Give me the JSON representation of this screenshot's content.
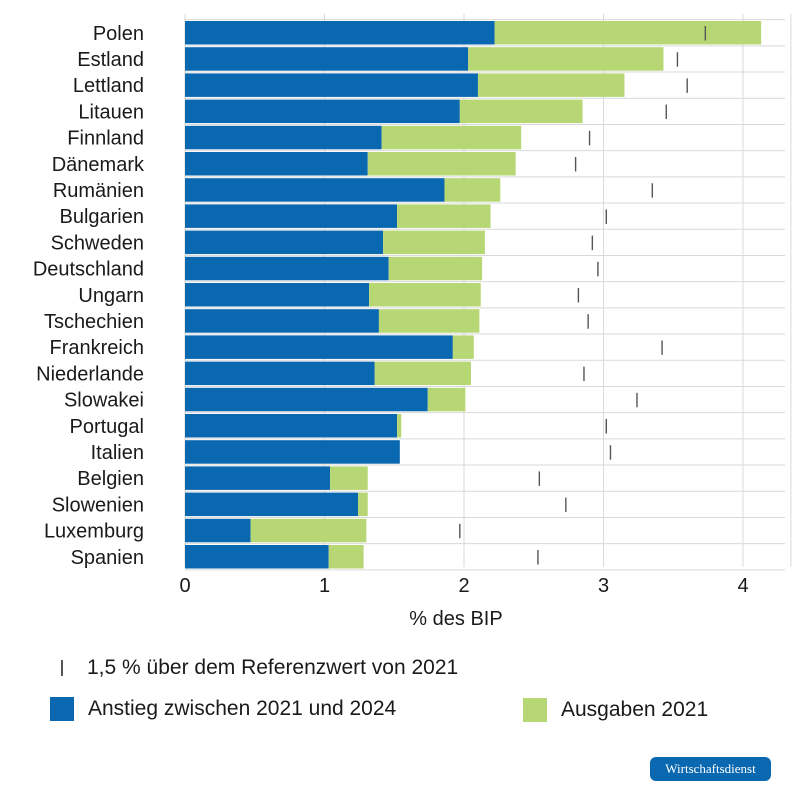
{
  "chart_data": {
    "type": "bar",
    "orientation": "horizontal",
    "stacked": true,
    "xlabel": "% des BIP",
    "xlim": [
      0,
      4.2
    ],
    "xticks": [
      0,
      1,
      2,
      3,
      4
    ],
    "grid": true,
    "categories": [
      "Polen",
      "Estland",
      "Lettland",
      "Litauen",
      "Finnland",
      "Dänemark",
      "Rumänien",
      "Bulgarien",
      "Schweden",
      "Deutschland",
      "Ungarn",
      "Tschechien",
      "Frankreich",
      "Niederlande",
      "Slowakei",
      "Portugal",
      "Italien",
      "Belgien",
      "Slowenien",
      "Luxemburg",
      "Spanien"
    ],
    "series": [
      {
        "name": "Anstieg zwischen 2021 und 2024",
        "color": "#0a68b0",
        "values": [
          2.22,
          2.03,
          2.1,
          1.97,
          1.41,
          1.31,
          1.86,
          1.52,
          1.42,
          1.46,
          1.32,
          1.39,
          1.92,
          1.36,
          1.74,
          1.52,
          1.54,
          1.04,
          1.24,
          0.47,
          1.03
        ]
      },
      {
        "name": "Ausgaben 2021",
        "color": "#b7d774",
        "values": [
          1.91,
          1.4,
          1.05,
          0.88,
          1.0,
          1.06,
          0.4,
          0.67,
          0.73,
          0.67,
          0.8,
          0.72,
          0.15,
          0.69,
          0.27,
          0.03,
          0.0,
          0.27,
          0.07,
          0.83,
          0.25
        ]
      }
    ],
    "markers": {
      "name": "1,5 % über dem Referenzwert von 2021",
      "values": [
        3.73,
        3.53,
        3.6,
        3.45,
        2.9,
        2.8,
        3.35,
        3.02,
        2.92,
        2.96,
        2.82,
        2.89,
        3.42,
        2.86,
        3.24,
        3.02,
        3.05,
        2.54,
        2.73,
        1.97,
        2.53
      ]
    }
  },
  "legend": {
    "marker_label": "1,5 % über dem Referenzwert von 2021",
    "series1_label": "Anstieg zwischen 2021 und 2024",
    "series2_label": "Ausgaben 2021"
  },
  "branding": {
    "badge": "Wirtschaftsdienst"
  },
  "colors": {
    "blue": "#0a68b0",
    "green": "#b7d774",
    "grid": "#d9d9d9",
    "marker": "#555555"
  }
}
